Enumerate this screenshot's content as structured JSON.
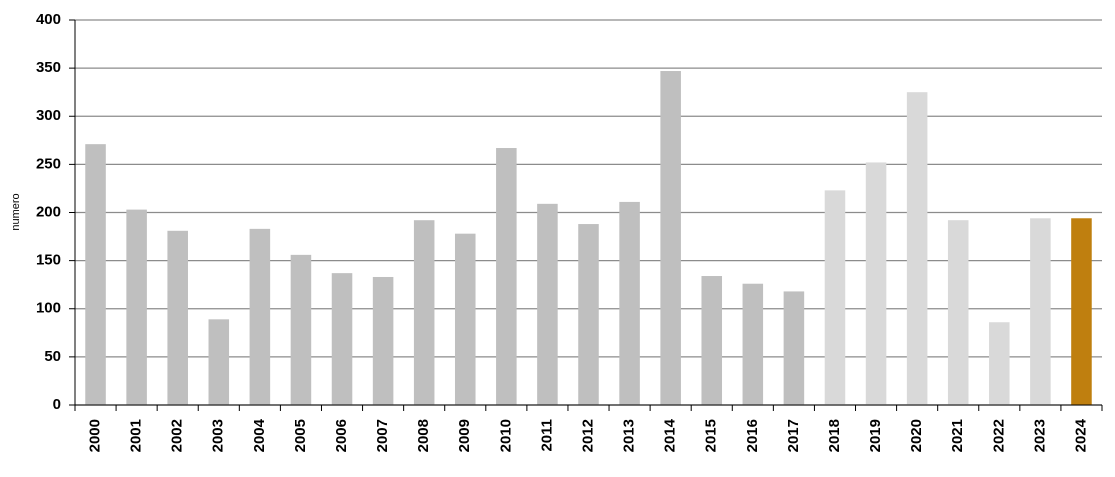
{
  "chart_data": {
    "type": "bar",
    "y_label": "numero",
    "categories": [
      "2000",
      "2001",
      "2002",
      "2003",
      "2004",
      "2005",
      "2006",
      "2007",
      "2008",
      "2009",
      "2010",
      "2011",
      "2012",
      "2013",
      "2014",
      "2015",
      "2016",
      "2017",
      "2018",
      "2019",
      "2020",
      "2021",
      "2022",
      "2023",
      "2024"
    ],
    "values": [
      271,
      203,
      181,
      89,
      183,
      156,
      137,
      133,
      192,
      178,
      267,
      209,
      188,
      211,
      347,
      134,
      126,
      118,
      223,
      252,
      325,
      192,
      86,
      194,
      194
    ],
    "colors": [
      "#bfbfbf",
      "#bfbfbf",
      "#bfbfbf",
      "#bfbfbf",
      "#bfbfbf",
      "#bfbfbf",
      "#bfbfbf",
      "#bfbfbf",
      "#bfbfbf",
      "#bfbfbf",
      "#bfbfbf",
      "#bfbfbf",
      "#bfbfbf",
      "#bfbfbf",
      "#bfbfbf",
      "#bfbfbf",
      "#bfbfbf",
      "#bfbfbf",
      "#d9d9d9",
      "#d9d9d9",
      "#d9d9d9",
      "#d9d9d9",
      "#d9d9d9",
      "#d9d9d9",
      "#bf7f0f"
    ],
    "ylim": [
      0,
      400
    ],
    "yticks": [
      0,
      50,
      100,
      150,
      200,
      250,
      300,
      350,
      400
    ],
    "grid": true
  }
}
